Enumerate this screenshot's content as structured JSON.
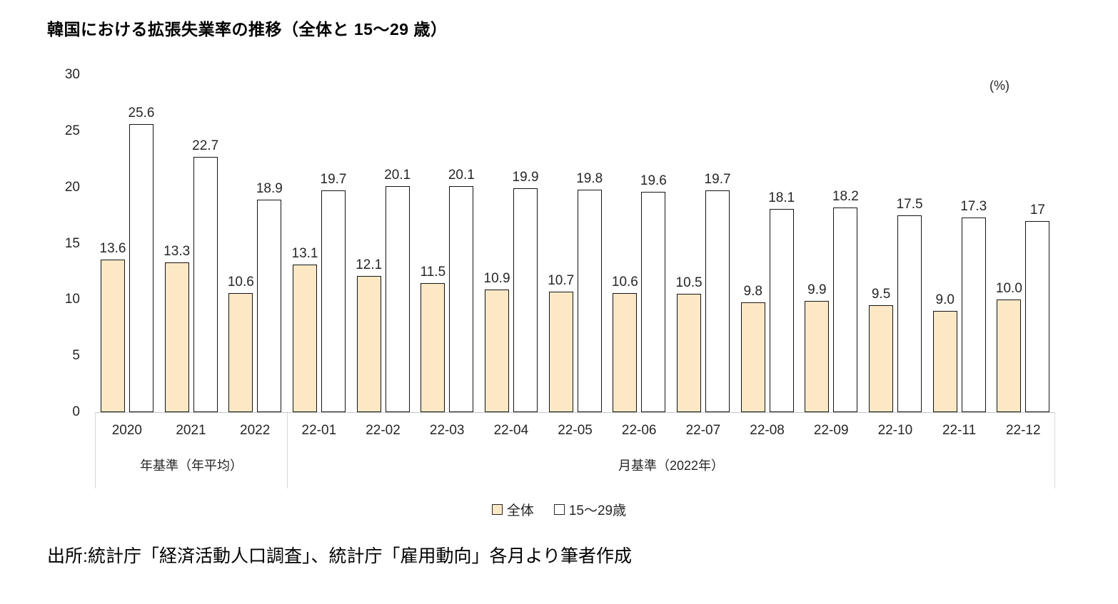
{
  "title": "韓国における拡張失業率の推移（全体と 15～29 歳）",
  "unit_label": "(%)",
  "source": "出所:統計庁「経済活動人口調査」、統計庁「雇用動向」各月より筆者作成",
  "colors": {
    "series_zentai_fill": "#FCE8C4",
    "series_age_fill": "#FFFFFF",
    "bar_border": "#141414",
    "axis_line": "#C6C6C6",
    "group_box_line": "#D9D9D9",
    "text": "#262626"
  },
  "chart_data": {
    "type": "bar",
    "title": "韓国における拡張失業率の推移（全体と 15～29 歳）",
    "ylabel": "(%)",
    "xlabel": "",
    "ylim": [
      0,
      30
    ],
    "y_ticks": [
      0,
      5,
      10,
      15,
      20,
      25,
      30
    ],
    "grid": "off",
    "legend_position": "bottom",
    "categories": [
      "2020",
      "2021",
      "2022",
      "22-01",
      "22-02",
      "22-03",
      "22-04",
      "22-05",
      "22-06",
      "22-07",
      "22-08",
      "22-09",
      "22-10",
      "22-11",
      "22-12"
    ],
    "category_groups": [
      {
        "label": "年基準（年平均）",
        "span": 3
      },
      {
        "label": "月基準（2022年）",
        "span": 12
      }
    ],
    "series": [
      {
        "key": "zentai",
        "name": "全体",
        "color": "#FCE8C4",
        "values": [
          13.6,
          13.3,
          10.6,
          13.1,
          12.1,
          11.5,
          10.9,
          10.7,
          10.6,
          10.5,
          9.8,
          9.9,
          9.5,
          9.0,
          10.0
        ],
        "labels": [
          "13.6",
          "13.3",
          "10.6",
          "13.1",
          "12.1",
          "11.5",
          "10.9",
          "10.7",
          "10.6",
          "10.5",
          "9.8",
          "9.9",
          "9.5",
          "9.0",
          "10.0"
        ]
      },
      {
        "key": "age15-29",
        "name": "15～29歳",
        "color": "#FFFFFF",
        "values": [
          25.6,
          22.7,
          18.9,
          19.7,
          20.1,
          20.1,
          19.9,
          19.8,
          19.6,
          19.7,
          18.1,
          18.2,
          17.5,
          17.3,
          17
        ],
        "labels": [
          "25.6",
          "22.7",
          "18.9",
          "19.7",
          "20.1",
          "20.1",
          "19.9",
          "19.8",
          "19.6",
          "19.7",
          "18.1",
          "18.2",
          "17.5",
          "17.3",
          "17"
        ]
      }
    ]
  }
}
